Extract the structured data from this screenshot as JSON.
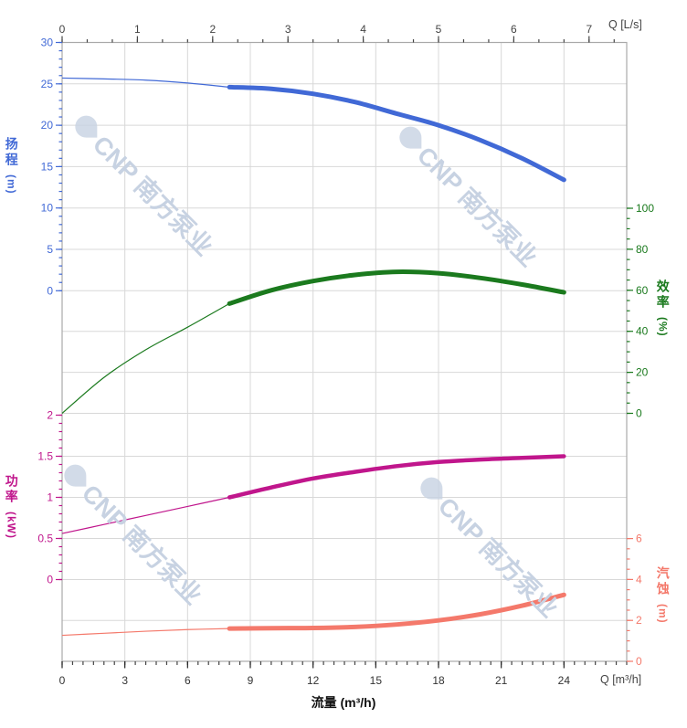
{
  "watermark": {
    "text": "CNP 南方泵业",
    "color": "#c7d2e2"
  },
  "chart_data": {
    "type": "line",
    "title": "",
    "grid": true,
    "x_axis_bottom": {
      "axis_label": "流量 (m³/h)",
      "corner_label": "Q [m³/h]",
      "tick_labels": [
        0,
        3,
        6,
        9,
        12,
        15,
        18,
        21,
        24
      ],
      "minor_step": 0.5,
      "range": [
        0,
        27
      ]
    },
    "x_axis_top": {
      "corner_label": "Q [L/s]",
      "tick_labels": [
        0,
        1,
        2,
        3,
        4,
        5,
        6,
        7
      ],
      "minor_step": 0.3333,
      "range": [
        0,
        7.5
      ]
    },
    "y_axes": {
      "head": {
        "title": "扬程",
        "unit": "(m)",
        "side": "left",
        "color": "#4169d6",
        "tick_labels": [
          30,
          25,
          20,
          15,
          10,
          5,
          0
        ],
        "minor_step": 1,
        "range": [
          0,
          30
        ]
      },
      "efficiency": {
        "title": "效率",
        "unit": "(%)",
        "side": "right",
        "color": "#1b7a1e",
        "tick_labels": [
          100,
          80,
          60,
          40,
          20,
          0
        ],
        "minor_step": 5,
        "range": [
          0,
          100
        ]
      },
      "power": {
        "title": "功率",
        "unit": "(kW)",
        "side": "left",
        "color": "#c0168c",
        "tick_labels": [
          "2",
          "1.5",
          "1",
          "0.5",
          "0"
        ],
        "minor_step": 0.1,
        "range": [
          0,
          2
        ]
      },
      "npsh": {
        "title": "汽蚀",
        "unit": "(m)",
        "side": "right",
        "color": "#f4796b",
        "tick_labels": [
          6,
          4,
          2,
          0
        ],
        "minor_step": 0.5,
        "range": [
          0,
          6
        ]
      }
    },
    "series": [
      {
        "name": "head",
        "axis": "head",
        "color": "#4169d6",
        "highlight_from_q": 8,
        "points": [
          [
            0,
            25.7
          ],
          [
            2,
            25.6
          ],
          [
            4,
            25.45
          ],
          [
            6,
            25.1
          ],
          [
            8,
            24.6
          ],
          [
            10,
            24.4
          ],
          [
            12,
            23.8
          ],
          [
            14,
            22.8
          ],
          [
            16,
            21.4
          ],
          [
            18,
            20.0
          ],
          [
            20,
            18.2
          ],
          [
            22,
            16.0
          ],
          [
            24,
            13.4
          ]
        ]
      },
      {
        "name": "efficiency",
        "axis": "efficiency",
        "color": "#1b7a1e",
        "highlight_from_q": 8,
        "points": [
          [
            0,
            0
          ],
          [
            2,
            17.5
          ],
          [
            4,
            31
          ],
          [
            6,
            42
          ],
          [
            8,
            53.5
          ],
          [
            10,
            60
          ],
          [
            12,
            64.5
          ],
          [
            14,
            67.5
          ],
          [
            16,
            69
          ],
          [
            18,
            68.3
          ],
          [
            20,
            66
          ],
          [
            22,
            62.8
          ],
          [
            24,
            59
          ]
        ]
      },
      {
        "name": "power",
        "axis": "power",
        "color": "#c0168c",
        "highlight_from_q": 8,
        "points": [
          [
            0,
            0.56
          ],
          [
            2,
            0.67
          ],
          [
            4,
            0.78
          ],
          [
            6,
            0.89
          ],
          [
            8,
            1.0
          ],
          [
            10,
            1.12
          ],
          [
            12,
            1.23
          ],
          [
            14,
            1.31
          ],
          [
            16,
            1.38
          ],
          [
            18,
            1.43
          ],
          [
            20,
            1.46
          ],
          [
            22,
            1.48
          ],
          [
            24,
            1.5
          ]
        ]
      },
      {
        "name": "npsh",
        "axis": "npsh",
        "color": "#f4796b",
        "highlight_from_q": 8,
        "points": [
          [
            0,
            1.27
          ],
          [
            2,
            1.37
          ],
          [
            4,
            1.47
          ],
          [
            6,
            1.55
          ],
          [
            8,
            1.6
          ],
          [
            10,
            1.62
          ],
          [
            12,
            1.63
          ],
          [
            14,
            1.68
          ],
          [
            16,
            1.8
          ],
          [
            18,
            2.0
          ],
          [
            20,
            2.3
          ],
          [
            22,
            2.72
          ],
          [
            24,
            3.25
          ]
        ]
      }
    ]
  }
}
